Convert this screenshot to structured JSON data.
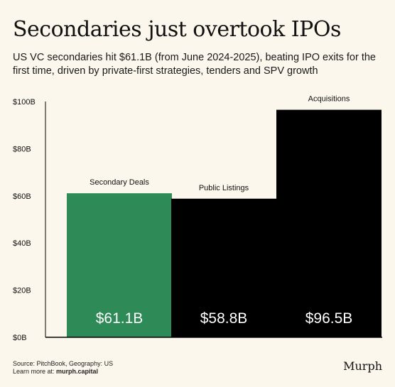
{
  "header": {
    "title": "Secondaries just overtook IPOs",
    "subtitle": "US VC secondaries hit $61.1B (from June 2024-2025), beating IPO exits for the first time, driven by private-first strategies, tenders and SPV growth"
  },
  "chart_data": {
    "type": "bar",
    "categories": [
      "Secondary Deals",
      "Public Listings",
      "Acquisitions"
    ],
    "values": [
      61.1,
      58.8,
      96.5
    ],
    "value_labels": [
      "$61.1B",
      "$58.8B",
      "$96.5B"
    ],
    "colors": [
      "#2E8B57",
      "#000000",
      "#000000"
    ],
    "yticks": [
      "$0B",
      "$20B",
      "$40B",
      "$60B",
      "$80B",
      "$100B"
    ],
    "ylim": [
      0,
      100
    ],
    "unit": "B USD",
    "grid": false,
    "axis_color": "#000000"
  },
  "footer": {
    "source": "Source: PitchBook, Geography: US",
    "learn_prefix": "Learn more at: ",
    "learn_link": "murph.capital"
  },
  "brand": {
    "name": "Murph"
  }
}
